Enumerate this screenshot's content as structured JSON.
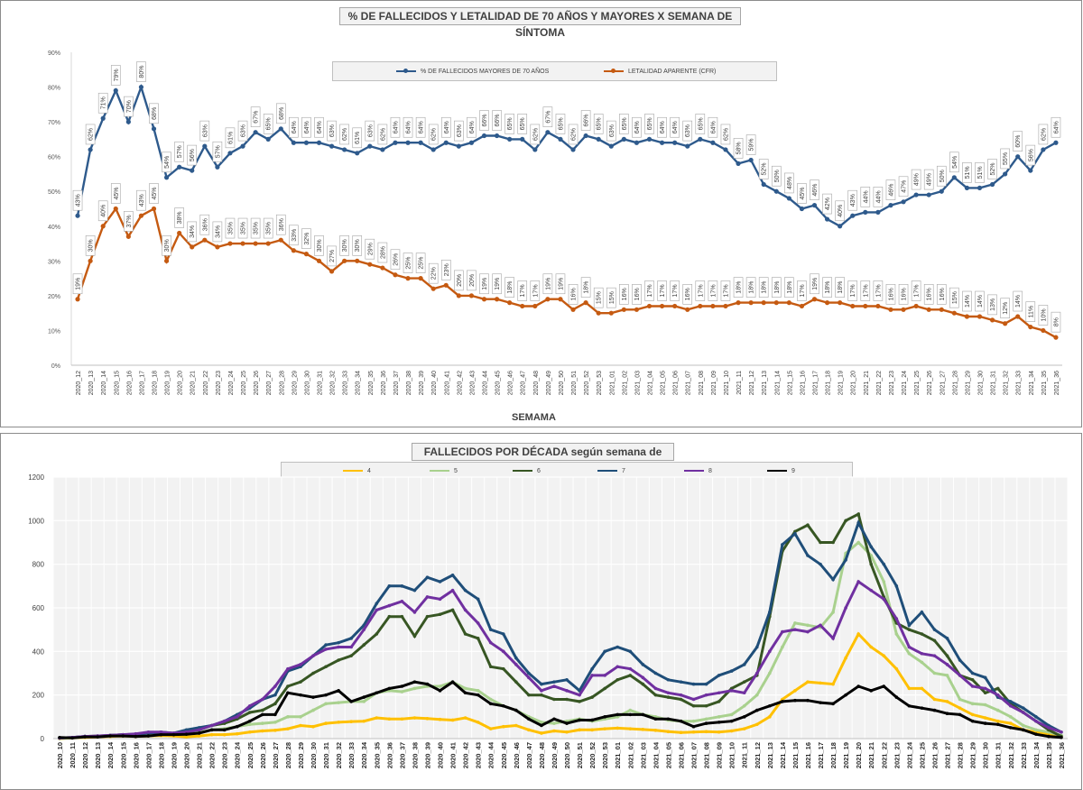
{
  "chart_data": [
    {
      "type": "line",
      "title": "% DE FALLECIDOS Y LETALIDAD DE 70 AÑOS Y MAYORES X SEMANA DE SÍNTOMA",
      "xlabel": "SEMAMA",
      "ylabel": "",
      "ylim": [
        0,
        90
      ],
      "yticks": [
        "0%",
        "10%",
        "20%",
        "30%",
        "40%",
        "50%",
        "60%",
        "70%",
        "80%",
        "90%"
      ],
      "grid": false,
      "legend": "top-center",
      "categories": [
        "2020_12",
        "2020_13",
        "2020_14",
        "2020_15",
        "2020_16",
        "2020_17",
        "2020_18",
        "2020_19",
        "2020_20",
        "2020_21",
        "2020_22",
        "2020_23",
        "2020_24",
        "2020_25",
        "2020_26",
        "2020_27",
        "2020_28",
        "2020_29",
        "2020_30",
        "2020_31",
        "2020_32",
        "2020_33",
        "2020_34",
        "2020_35",
        "2020_36",
        "2020_37",
        "2020_38",
        "2020_39",
        "2020_40",
        "2020_41",
        "2020_42",
        "2020_43",
        "2020_44",
        "2020_45",
        "2020_46",
        "2020_47",
        "2020_48",
        "2020_49",
        "2020_50",
        "2020_51",
        "2020_52",
        "2020_53",
        "2021_01",
        "2021_02",
        "2021_03",
        "2021_04",
        "2021_05",
        "2021_06",
        "2021_07",
        "2021_08",
        "2021_09",
        "2021_10",
        "2021_11",
        "2021_12",
        "2021_13",
        "2021_14",
        "2021_15",
        "2021_16",
        "2021_17",
        "2021_18",
        "2021_19",
        "2021_20",
        "2021_21",
        "2021_22",
        "2021_23",
        "2021_24",
        "2021_25",
        "2021_26",
        "2021_27",
        "2021_28",
        "2021_29",
        "2021_30",
        "2021_31",
        "2021_32",
        "2021_33",
        "2021_34",
        "2021_35",
        "2021_36"
      ],
      "series": [
        {
          "name": "% DE FALLECIDOS MAYORES DE 70 AÑOS",
          "color": "#2e5a8c",
          "values": [
            43,
            62,
            71,
            79,
            70,
            80,
            68,
            54,
            57,
            56,
            63,
            57,
            61,
            63,
            67,
            65,
            68,
            64,
            64,
            64,
            63,
            62,
            61,
            63,
            62,
            64,
            64,
            64,
            62,
            64,
            63,
            64,
            66,
            66,
            65,
            65,
            62,
            67,
            65,
            62,
            66,
            65,
            63,
            65,
            64,
            65,
            64,
            64,
            63,
            65,
            64,
            62,
            58,
            59,
            52,
            50,
            48,
            45,
            46,
            42,
            40,
            43,
            44,
            44,
            46,
            47,
            49,
            49,
            50,
            54,
            51,
            51,
            52,
            55,
            60,
            56,
            62,
            64
          ],
          "labels": [
            "43%",
            "62%",
            "71%",
            "79%",
            "70%",
            "80%",
            "68%",
            "54%",
            "57%",
            "56%",
            "63%",
            "57%",
            "61%",
            "63%",
            "67%",
            "65%",
            "68%",
            "64%",
            "64%",
            "64%",
            "63%",
            "62%",
            "61%",
            "63%",
            "62%",
            "64%",
            "64%",
            "64%",
            "62%",
            "64%",
            "63%",
            "64%",
            "66%",
            "66%",
            "65%",
            "65%",
            "62%",
            "67%",
            "65%",
            "62%",
            "66%",
            "65%",
            "63%",
            "65%",
            "64%",
            "65%",
            "64%",
            "64%",
            "63%",
            "65%",
            "64%",
            "62%",
            "58%",
            "59%",
            "52%",
            "50%",
            "48%",
            "45%",
            "46%",
            "42%",
            "40%",
            "43%",
            "44%",
            "44%",
            "46%",
            "47%",
            "49%",
            "49%",
            "50%",
            "54%",
            "51%",
            "51%",
            "52%",
            "55%",
            "60%",
            "56%",
            "62%",
            "64%"
          ]
        },
        {
          "name": "LETALIDAD APARENTE (CFR)",
          "color": "#c55a11",
          "values": [
            19,
            30,
            40,
            45,
            37,
            43,
            45,
            30,
            38,
            34,
            36,
            34,
            35,
            35,
            35,
            35,
            36,
            33,
            32,
            30,
            27,
            30,
            30,
            29,
            28,
            26,
            25,
            25,
            22,
            23,
            20,
            20,
            19,
            19,
            18,
            17,
            17,
            19,
            19,
            16,
            18,
            15,
            15,
            16,
            16,
            17,
            17,
            17,
            16,
            17,
            17,
            17,
            18,
            18,
            18,
            18,
            18,
            17,
            19,
            18,
            18,
            17,
            17,
            17,
            16,
            16,
            17,
            16,
            16,
            15,
            14,
            14,
            13,
            12,
            14,
            11,
            10,
            8
          ],
          "labels": [
            "19%",
            "30%",
            "40%",
            "45%",
            "37%",
            "43%",
            "45%",
            "30%",
            "38%",
            "34%",
            "36%",
            "34%",
            "35%",
            "35%",
            "35%",
            "35%",
            "36%",
            "33%",
            "32%",
            "30%",
            "27%",
            "30%",
            "30%",
            "29%",
            "28%",
            "26%",
            "25%",
            "25%",
            "22%",
            "23%",
            "20%",
            "20%",
            "19%",
            "19%",
            "18%",
            "17%",
            "17%",
            "19%",
            "19%",
            "16%",
            "18%",
            "15%",
            "15%",
            "16%",
            "16%",
            "17%",
            "17%",
            "17%",
            "16%",
            "17%",
            "17%",
            "17%",
            "18%",
            "18%",
            "18%",
            "18%",
            "18%",
            "17%",
            "19%",
            "18%",
            "18%",
            "17%",
            "17%",
            "17%",
            "16%",
            "16%",
            "17%",
            "16%",
            "16%",
            "15%",
            "14%",
            "14%",
            "13%",
            "12%",
            "14%",
            "11%",
            "10%",
            "8%"
          ]
        }
      ]
    },
    {
      "type": "line",
      "title": "FALLECIDOS POR DÉCADA según semana de muerte",
      "xlabel": "",
      "ylabel": "",
      "ylim": [
        0,
        1200
      ],
      "yticks": [
        "0",
        "200",
        "400",
        "600",
        "800",
        "1000",
        "1200"
      ],
      "grid": true,
      "legend": "top-center",
      "categories": [
        "2020_10",
        "2020_11",
        "2020_12",
        "2020_13",
        "2020_14",
        "2020_15",
        "2020_16",
        "2020_17",
        "2020_18",
        "2020_19",
        "2020_20",
        "2020_21",
        "2020_22",
        "2020_23",
        "2020_24",
        "2020_25",
        "2020_26",
        "2020_27",
        "2020_28",
        "2020_29",
        "2020_30",
        "2020_31",
        "2020_32",
        "2020_33",
        "2020_34",
        "2020_35",
        "2020_36",
        "2020_37",
        "2020_38",
        "2020_39",
        "2020_40",
        "2020_41",
        "2020_42",
        "2020_43",
        "2020_44",
        "2020_45",
        "2020_46",
        "2020_47",
        "2020_48",
        "2020_49",
        "2020_50",
        "2020_51",
        "2020_52",
        "2020_53",
        "2021_01",
        "2021_02",
        "2021_03",
        "2021_04",
        "2021_05",
        "2021_06",
        "2021_07",
        "2021_08",
        "2021_09",
        "2021_10",
        "2021_11",
        "2021_12",
        "2021_13",
        "2021_14",
        "2021_15",
        "2021_16",
        "2021_17",
        "2021_18",
        "2021_19",
        "2021_20",
        "2021_21",
        "2021_22",
        "2021_23",
        "2021_24",
        "2021_25",
        "2021_26",
        "2021_27",
        "2021_28",
        "2021_29",
        "2021_30",
        "2021_31",
        "2021_32",
        "2021_33",
        "2021_34",
        "2021_35",
        "2021_36"
      ],
      "series": [
        {
          "name": "4",
          "color": "#ffc000",
          "values": [
            0,
            3,
            5,
            8,
            10,
            12,
            10,
            12,
            14,
            12,
            8,
            12,
            18,
            18,
            22,
            30,
            35,
            38,
            45,
            60,
            55,
            70,
            75,
            78,
            80,
            95,
            90,
            90,
            95,
            92,
            88,
            85,
            95,
            75,
            45,
            55,
            60,
            40,
            25,
            35,
            30,
            40,
            40,
            45,
            48,
            45,
            42,
            38,
            32,
            28,
            30,
            32,
            30,
            35,
            45,
            65,
            100,
            180,
            220,
            260,
            255,
            250,
            370,
            480,
            420,
            380,
            320,
            230,
            230,
            180,
            170,
            140,
            110,
            95,
            80,
            70,
            40,
            30,
            20,
            10
          ]
        },
        {
          "name": "5",
          "color": "#a9d18e",
          "values": [
            2,
            3,
            8,
            10,
            12,
            15,
            20,
            22,
            25,
            22,
            20,
            28,
            40,
            45,
            55,
            65,
            70,
            75,
            100,
            100,
            130,
            160,
            165,
            170,
            170,
            210,
            220,
            215,
            230,
            240,
            240,
            260,
            230,
            220,
            180,
            150,
            130,
            100,
            75,
            70,
            80,
            90,
            80,
            90,
            100,
            130,
            110,
            100,
            85,
            80,
            80,
            90,
            100,
            110,
            150,
            200,
            300,
            420,
            530,
            520,
            510,
            580,
            850,
            900,
            840,
            720,
            480,
            390,
            350,
            300,
            290,
            180,
            160,
            155,
            130,
            100,
            60,
            40,
            30,
            15
          ]
        },
        {
          "name": "6",
          "color": "#375623",
          "values": [
            3,
            5,
            10,
            12,
            15,
            18,
            20,
            28,
            25,
            22,
            30,
            40,
            60,
            70,
            90,
            120,
            130,
            160,
            240,
            260,
            300,
            330,
            360,
            380,
            430,
            480,
            560,
            560,
            470,
            560,
            570,
            590,
            480,
            460,
            330,
            320,
            260,
            200,
            200,
            180,
            180,
            170,
            190,
            230,
            270,
            290,
            250,
            200,
            190,
            180,
            150,
            150,
            170,
            230,
            260,
            290,
            560,
            860,
            950,
            980,
            900,
            900,
            1000,
            1030,
            800,
            650,
            530,
            500,
            480,
            450,
            380,
            290,
            270,
            210,
            230,
            160,
            120,
            80,
            40,
            10
          ]
        },
        {
          "name": "7",
          "color": "#1f4e79",
          "values": [
            2,
            5,
            10,
            10,
            15,
            18,
            20,
            25,
            30,
            25,
            40,
            50,
            60,
            80,
            110,
            140,
            180,
            200,
            310,
            330,
            380,
            430,
            440,
            460,
            520,
            620,
            700,
            700,
            680,
            740,
            720,
            750,
            680,
            640,
            500,
            480,
            370,
            300,
            250,
            260,
            270,
            220,
            320,
            400,
            420,
            400,
            340,
            300,
            270,
            260,
            250,
            250,
            290,
            310,
            340,
            420,
            580,
            890,
            940,
            840,
            800,
            730,
            820,
            990,
            880,
            800,
            700,
            520,
            580,
            500,
            460,
            360,
            300,
            280,
            190,
            170,
            140,
            100,
            60,
            30
          ]
        },
        {
          "name": "8",
          "color": "#7030a0",
          "values": [
            3,
            5,
            10,
            12,
            15,
            18,
            22,
            30,
            30,
            25,
            30,
            40,
            60,
            80,
            100,
            150,
            180,
            240,
            320,
            340,
            380,
            410,
            420,
            420,
            500,
            590,
            610,
            630,
            580,
            650,
            640,
            680,
            590,
            530,
            440,
            400,
            340,
            280,
            220,
            240,
            220,
            200,
            290,
            290,
            330,
            320,
            280,
            230,
            210,
            200,
            180,
            200,
            210,
            220,
            210,
            300,
            400,
            490,
            500,
            490,
            520,
            460,
            600,
            720,
            680,
            640,
            550,
            420,
            390,
            380,
            340,
            290,
            240,
            230,
            200,
            150,
            120,
            80,
            50,
            30
          ]
        },
        {
          "name": "9",
          "color": "#000000",
          "values": [
            5,
            3,
            8,
            8,
            12,
            12,
            10,
            12,
            18,
            18,
            20,
            25,
            40,
            40,
            55,
            80,
            110,
            110,
            210,
            200,
            190,
            200,
            220,
            170,
            190,
            210,
            230,
            240,
            260,
            250,
            220,
            260,
            210,
            200,
            160,
            150,
            130,
            90,
            60,
            90,
            70,
            85,
            85,
            100,
            110,
            110,
            110,
            90,
            90,
            80,
            55,
            70,
            75,
            80,
            100,
            130,
            150,
            170,
            175,
            175,
            165,
            160,
            200,
            240,
            220,
            240,
            190,
            150,
            140,
            130,
            115,
            110,
            80,
            70,
            65,
            50,
            40,
            20,
            10,
            5
          ]
        }
      ]
    }
  ]
}
